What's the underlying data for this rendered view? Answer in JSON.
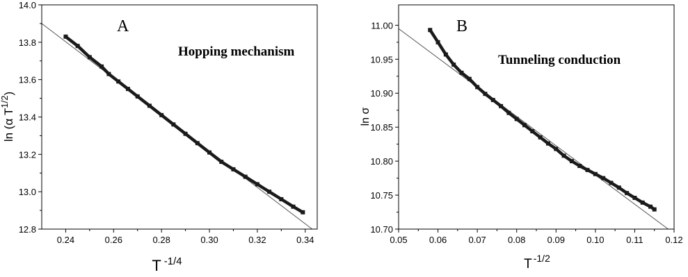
{
  "chart_data": [
    {
      "type": "scatter",
      "panel_label": "A",
      "annotation": "Hopping mechanism",
      "xlabel": {
        "base": "T",
        "sup": "-1/4"
      },
      "ylabel": {
        "pre": "ln (α T",
        "sup": "1/2",
        "post": ")"
      },
      "xlim": [
        0.23,
        0.345
      ],
      "ylim": [
        12.8,
        14.0
      ],
      "xticks": [
        0.24,
        0.26,
        0.28,
        0.3,
        0.32,
        0.34
      ],
      "xtick_labels": [
        "0.24",
        "0.26",
        "0.28",
        "0.30",
        "0.32",
        "0.34"
      ],
      "yticks": [
        12.8,
        13.0,
        13.2,
        13.4,
        13.6,
        13.8,
        14.0
      ],
      "ytick_labels": [
        "12.8",
        "13.0",
        "13.2",
        "13.4",
        "13.6",
        "13.8",
        "14.0"
      ],
      "grid": false,
      "series": [
        {
          "points": [
            [
              0.24,
              13.83
            ],
            [
              0.245,
              13.78
            ],
            [
              0.25,
              13.72
            ],
            [
              0.255,
              13.67
            ],
            [
              0.258,
              13.63
            ],
            [
              0.262,
              13.59
            ],
            [
              0.266,
              13.55
            ],
            [
              0.27,
              13.51
            ],
            [
              0.275,
              13.46
            ],
            [
              0.28,
              13.41
            ],
            [
              0.285,
              13.36
            ],
            [
              0.29,
              13.31
            ],
            [
              0.295,
              13.26
            ],
            [
              0.3,
              13.21
            ],
            [
              0.305,
              13.16
            ],
            [
              0.31,
              13.12
            ],
            [
              0.315,
              13.08
            ],
            [
              0.32,
              13.04
            ],
            [
              0.325,
              13.0
            ],
            [
              0.33,
              12.96
            ],
            [
              0.335,
              12.92
            ],
            [
              0.339,
              12.89
            ]
          ]
        }
      ],
      "fit_line": [
        [
          0.23,
          13.9
        ],
        [
          0.347,
          12.76
        ]
      ]
    },
    {
      "type": "scatter",
      "panel_label": "B",
      "annotation": "Tunneling conduction",
      "xlabel": {
        "base": "T",
        "sup": "-1/2"
      },
      "ylabel": {
        "pre": "ln σ",
        "sup": "",
        "post": ""
      },
      "xlim": [
        0.05,
        0.12
      ],
      "ylim": [
        10.7,
        11.03
      ],
      "xticks": [
        0.05,
        0.06,
        0.07,
        0.08,
        0.09,
        0.1,
        0.11,
        0.12
      ],
      "xtick_labels": [
        "0.05",
        "0.06",
        "0.07",
        "0.08",
        "0.09",
        "0.10",
        "0.11",
        "0.12"
      ],
      "yticks": [
        10.7,
        10.75,
        10.8,
        10.85,
        10.9,
        10.95,
        11.0
      ],
      "ytick_labels": [
        "10.70",
        "10.75",
        "10.80",
        "10.85",
        "10.90",
        "10.95",
        "11.00"
      ],
      "grid": false,
      "series": [
        {
          "points": [
            [
              0.058,
              10.993
            ],
            [
              0.06,
              10.975
            ],
            [
              0.062,
              10.957
            ],
            [
              0.064,
              10.942
            ],
            [
              0.066,
              10.93
            ],
            [
              0.068,
              10.921
            ],
            [
              0.07,
              10.909
            ],
            [
              0.072,
              10.899
            ],
            [
              0.074,
              10.89
            ],
            [
              0.076,
              10.881
            ],
            [
              0.078,
              10.871
            ],
            [
              0.08,
              10.862
            ],
            [
              0.082,
              10.853
            ],
            [
              0.084,
              10.844
            ],
            [
              0.086,
              10.835
            ],
            [
              0.088,
              10.826
            ],
            [
              0.09,
              10.818
            ],
            [
              0.092,
              10.808
            ],
            [
              0.094,
              10.8
            ],
            [
              0.096,
              10.793
            ],
            [
              0.098,
              10.787
            ],
            [
              0.1,
              10.781
            ],
            [
              0.102,
              10.775
            ],
            [
              0.104,
              10.768
            ],
            [
              0.106,
              10.761
            ],
            [
              0.108,
              10.753
            ],
            [
              0.11,
              10.746
            ],
            [
              0.112,
              10.739
            ],
            [
              0.114,
              10.733
            ],
            [
              0.115,
              10.729
            ]
          ]
        }
      ],
      "fit_line": [
        [
          0.05,
          10.995
        ],
        [
          0.1185,
          10.7
        ]
      ]
    }
  ]
}
